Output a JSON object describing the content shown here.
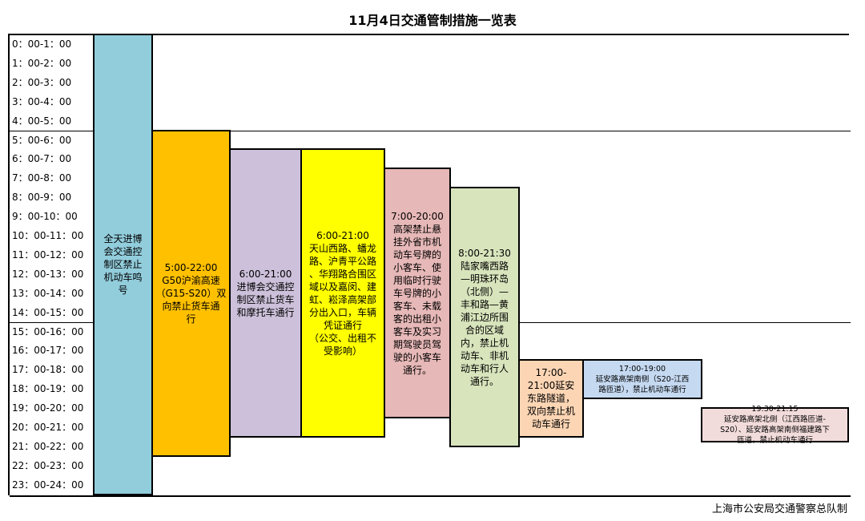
{
  "title": "11月4日交通管制措施一览表",
  "footer": "上海市公安局交通警察总队制",
  "rows": [
    "0：00-1：00",
    "1：00-2：00",
    "2：00-3：00",
    "3：00-4：00",
    "4：00-5：00",
    "5：00-6：00",
    "6：00-7：00",
    "7：00-8：00",
    "8：00-9：00",
    "9：00-10：00",
    "10：00-11：00",
    "11：00-12：00",
    "12：00-13：00",
    "13：00-14：00",
    "14：00-15：00",
    "15：00-16：00",
    "16：00-17：00",
    "17：00-18：00",
    "18：00-19：00",
    "19：00-20：00",
    "20：00-21：00",
    "21：00-22：00",
    "22：00-23：00",
    "23：00-24：00"
  ],
  "blocks": [
    {
      "column": 1,
      "start": 0,
      "end": 24,
      "color": "#92CDDC",
      "text": "全天进博\n会交通控\n制区禁止\n机动车鸣\n号"
    },
    {
      "column": 2,
      "start": 5,
      "end": 22,
      "color": "#FFC000",
      "text": "5:00-22:00\nG50沪渝高速\n（G15-S20）双\n向禁止货车通\n行"
    },
    {
      "column": 3,
      "start": 6,
      "end": 21,
      "color": "#CCC0DA",
      "text": "6:00-21:00\n进博会交通控\n制区禁止货车\n和摩托车通行"
    },
    {
      "column": 4,
      "start": 6,
      "end": 21,
      "color": "#FFFF00",
      "text": "6:00-21:00\n天山西路、蟠龙\n路、沪青平公路\n、华翔路合围区\n域以及嘉闵、建\n虹、崧泽高架部\n分出入口，车辆\n凭证通行\n（公交、出租不\n受影响）"
    },
    {
      "column": 5,
      "start": 7,
      "end": 20,
      "color": "#E6B8B7",
      "text": "7:00-20:00\n高架禁止悬\n挂外省市机\n动车号牌的\n小客车、使\n用临时行驶\n车号牌的小\n客车、未载\n客的出租小\n客车及实习\n期驾驶员驾\n驶的小客车\n通行。"
    },
    {
      "column": 6,
      "start": 8,
      "end": 21.5,
      "color": "#D8E4BC",
      "text": "8:00-21:30\n陆家嘴西路\n—明珠环岛\n（北侧）—\n丰和路—黄\n浦江边所围\n合的区域\n内，禁止机\n动车、非机\n动车和行人\n通行。"
    },
    {
      "column": 7,
      "start": 17,
      "end": 21,
      "color": "#FCD5B4",
      "text": "17:00-\n21:00延安\n东路隧道，\n双向禁止机\n动车通行"
    },
    {
      "column": 8,
      "start": 17,
      "end": 19,
      "color": "#C5D9F1",
      "small": true,
      "text": "17:00-19:00\n延安路高架南侧（S20-江西\n路匝道），禁止机动车通行"
    },
    {
      "column": 9,
      "start": 19.5,
      "end": 21.25,
      "color": "#F2DCDB",
      "small": true,
      "text": "19:30-21:15\n延安路高架北侧（江西路匝道-\nS20）、延安路高架南侧福建路下\n匝道，禁止机动车通行"
    }
  ]
}
